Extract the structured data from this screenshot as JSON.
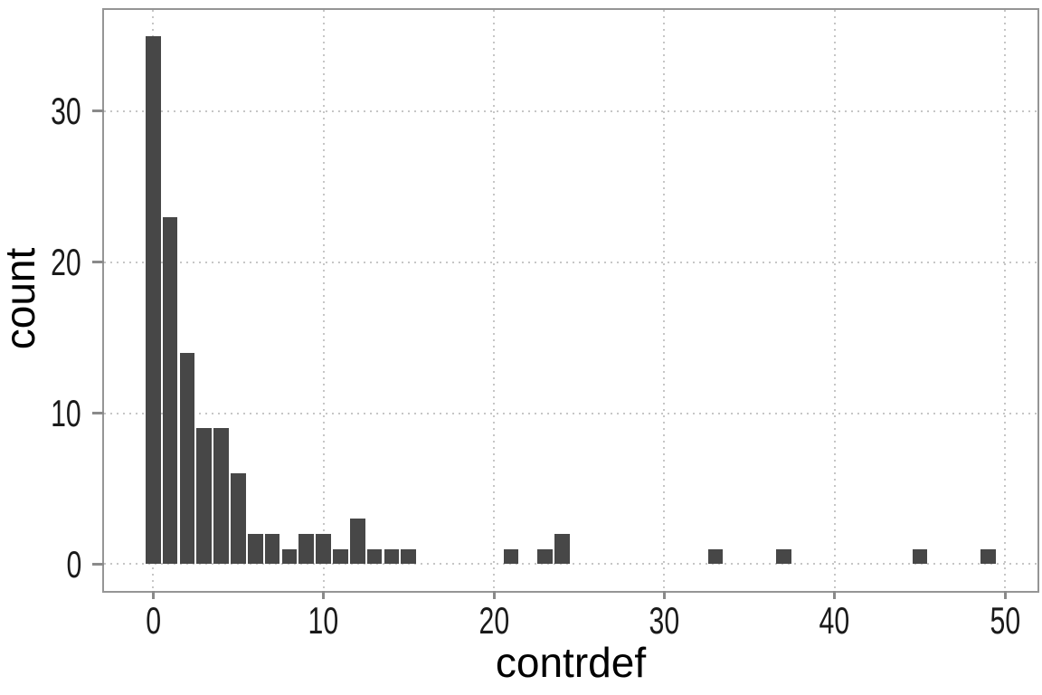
{
  "chart_data": {
    "type": "bar",
    "subtype": "histogram",
    "title": "",
    "xlabel": "contrdef",
    "ylabel": "count",
    "binwidth": 1,
    "x": [
      0,
      1,
      2,
      3,
      4,
      5,
      6,
      7,
      8,
      9,
      10,
      11,
      12,
      13,
      14,
      15,
      21,
      23,
      24,
      33,
      37,
      45,
      49
    ],
    "values": [
      35,
      23,
      14,
      9,
      9,
      6,
      2,
      2,
      1,
      2,
      2,
      1,
      3,
      1,
      1,
      1,
      1,
      1,
      2,
      1,
      1,
      1,
      1
    ],
    "x_ticks": [
      0,
      10,
      20,
      30,
      40,
      50
    ],
    "y_ticks": [
      0,
      10,
      20,
      30
    ],
    "xlim": [
      -2.88,
      51.9
    ],
    "ylim": [
      -1.78,
      36.71
    ],
    "grid": {
      "show": true,
      "style": "dashed",
      "which": "major"
    },
    "legend": "none",
    "colors": {
      "bar_fill": "#474747",
      "gridline": "#c6c6c6",
      "panel_border": "#959595",
      "tick_mark": "#8a8a8a",
      "tick_label": "#1a1a1a",
      "axis_title": "#000000",
      "background": "#ffffff"
    }
  }
}
